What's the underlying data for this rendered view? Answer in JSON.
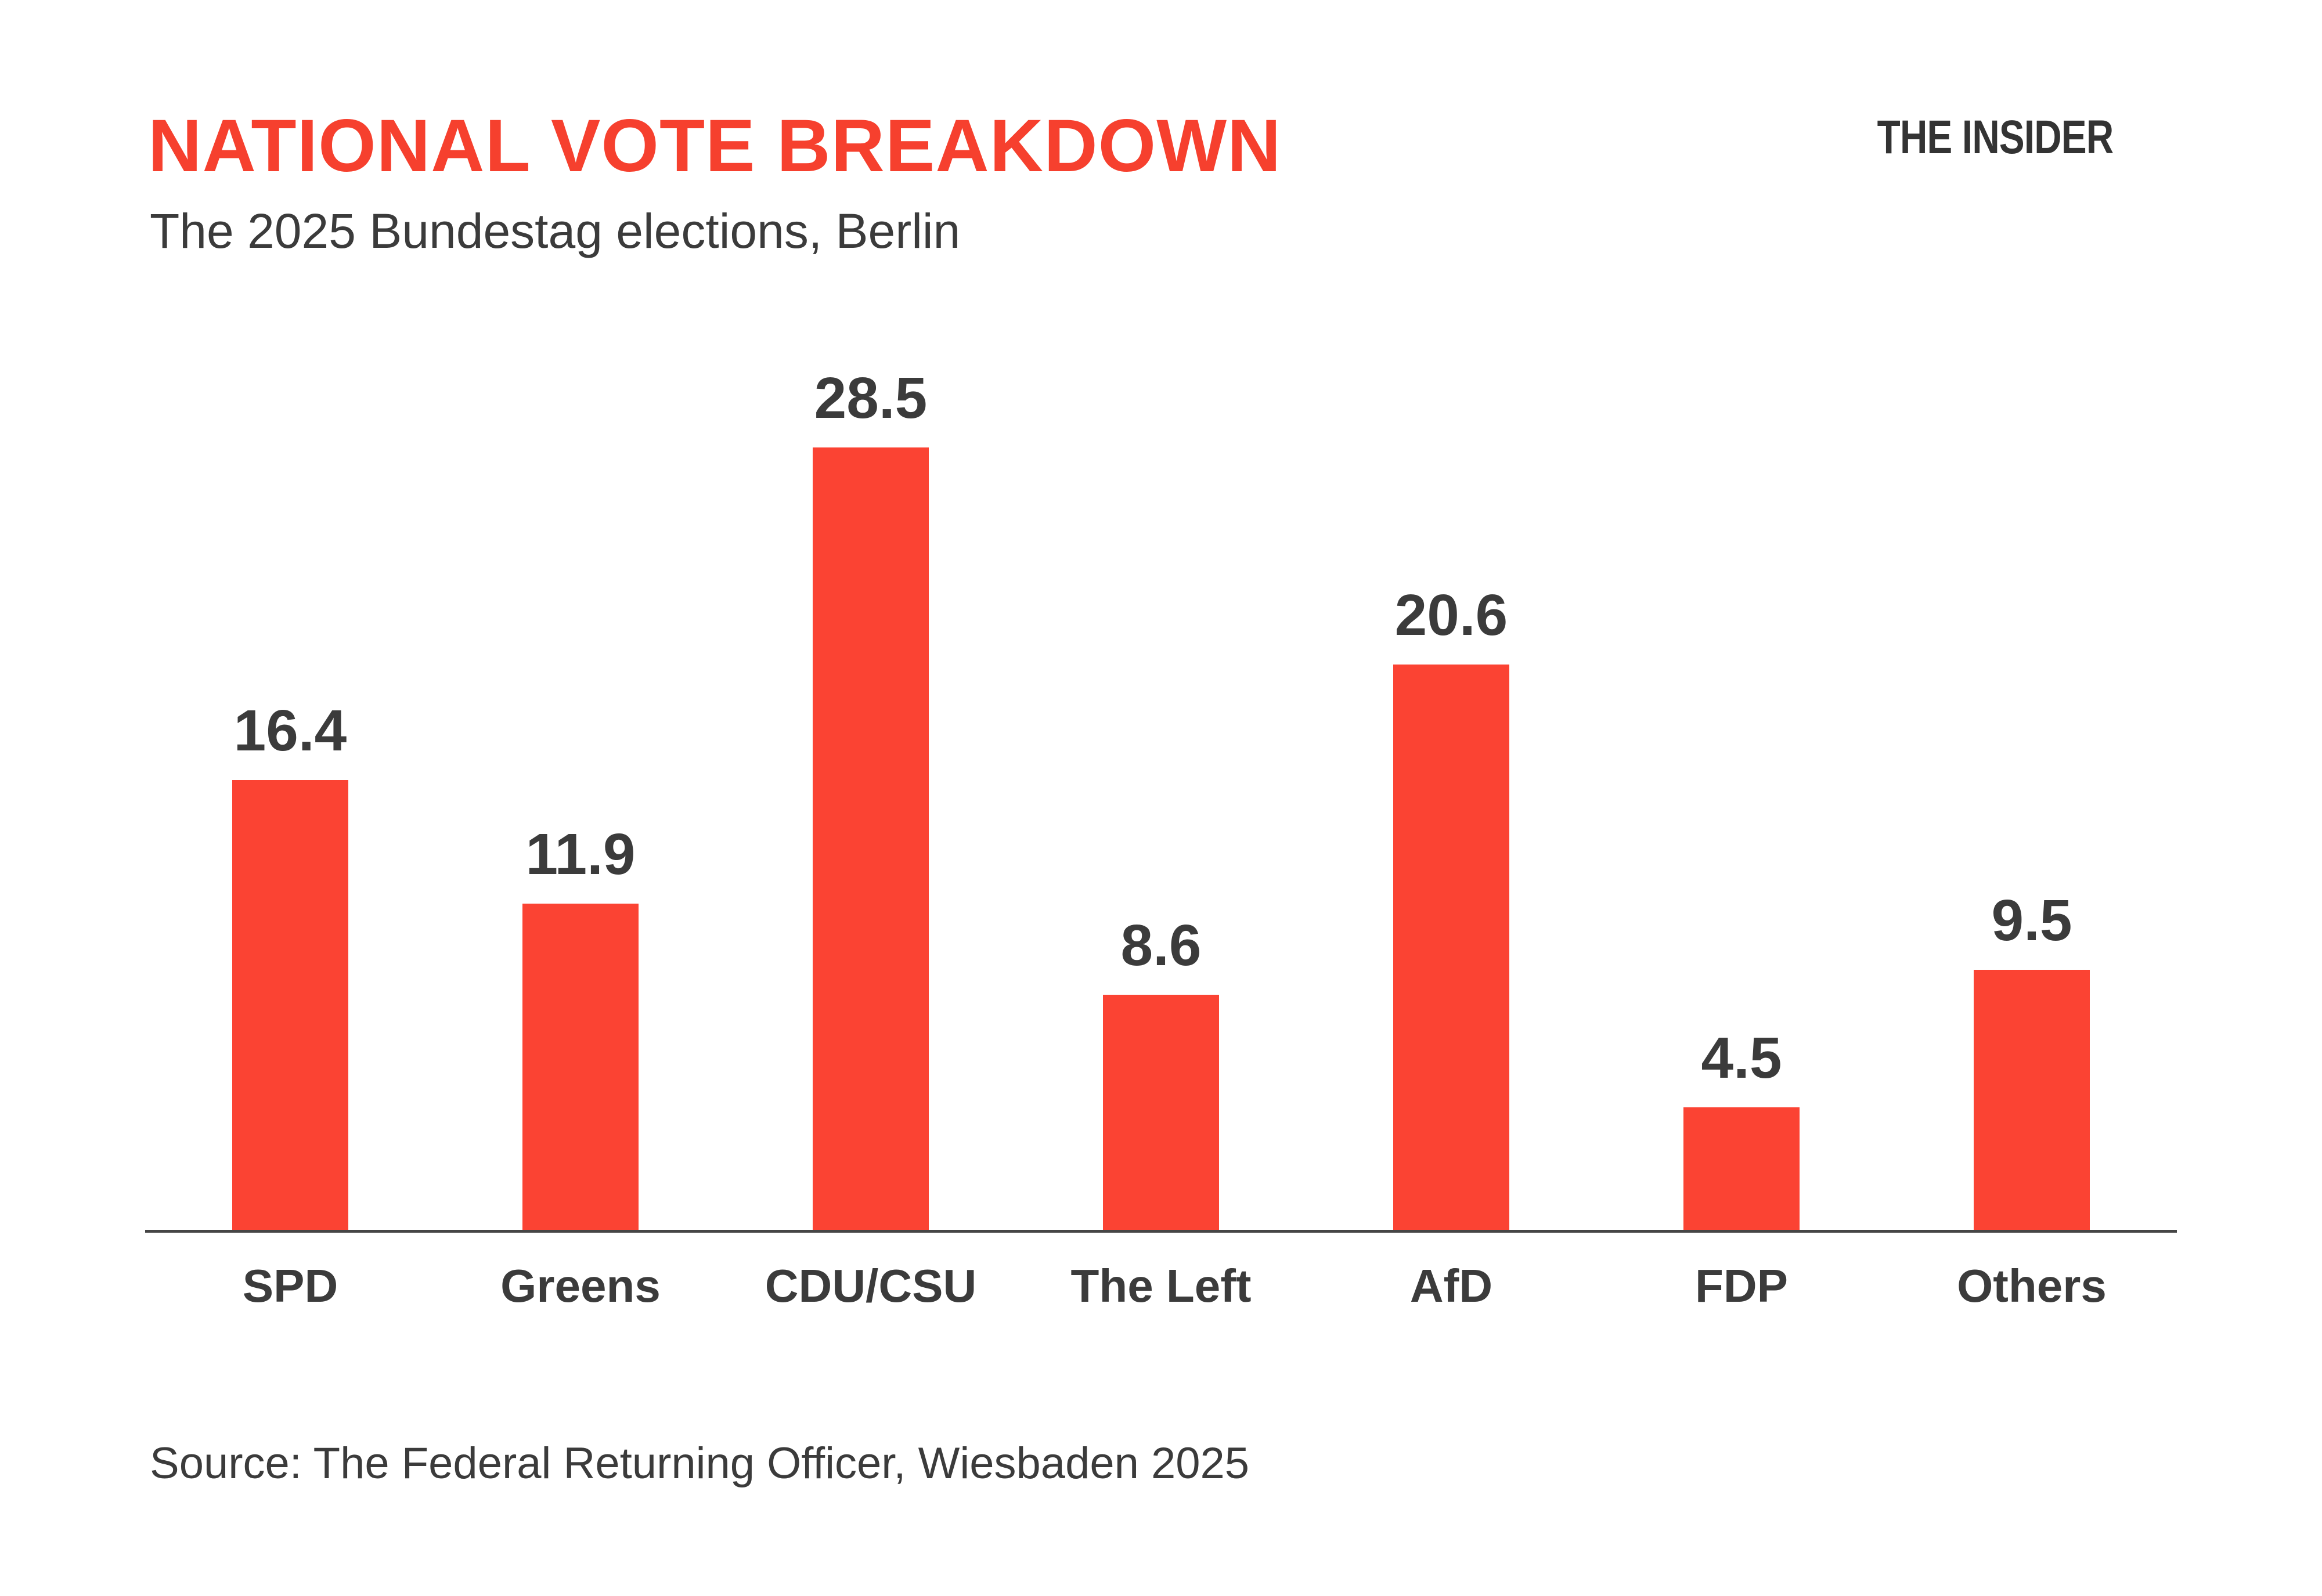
{
  "header": {
    "title": "NATIONAL VOTE BREAKDOWN",
    "subtitle": "The 2025 Bundestag elections, Berlin",
    "brand": "THE INSIDER"
  },
  "footer": {
    "source": "Source: The Federal Returning Officer, Wiesbaden 2025"
  },
  "colors": {
    "bar": "#FB4333",
    "title": "#F6402E",
    "text_dark": "#3B3B3B",
    "axis": "#454545",
    "background": "#FFFFFF"
  },
  "chart_data": {
    "type": "bar",
    "categories": [
      "SPD",
      "Greens",
      "CDU/CSU",
      "The Left",
      "AfD",
      "FDP",
      "Others"
    ],
    "values": [
      16.4,
      11.9,
      28.5,
      8.6,
      20.6,
      4.5,
      9.5
    ],
    "title": "NATIONAL VOTE BREAKDOWN",
    "subtitle": "The 2025 Bundestag elections, Berlin",
    "xlabel": "",
    "ylabel": "",
    "ylim": [
      0,
      30
    ],
    "grid": false,
    "legend": "none",
    "value_labels": true,
    "bar_color": "#FB4333"
  }
}
